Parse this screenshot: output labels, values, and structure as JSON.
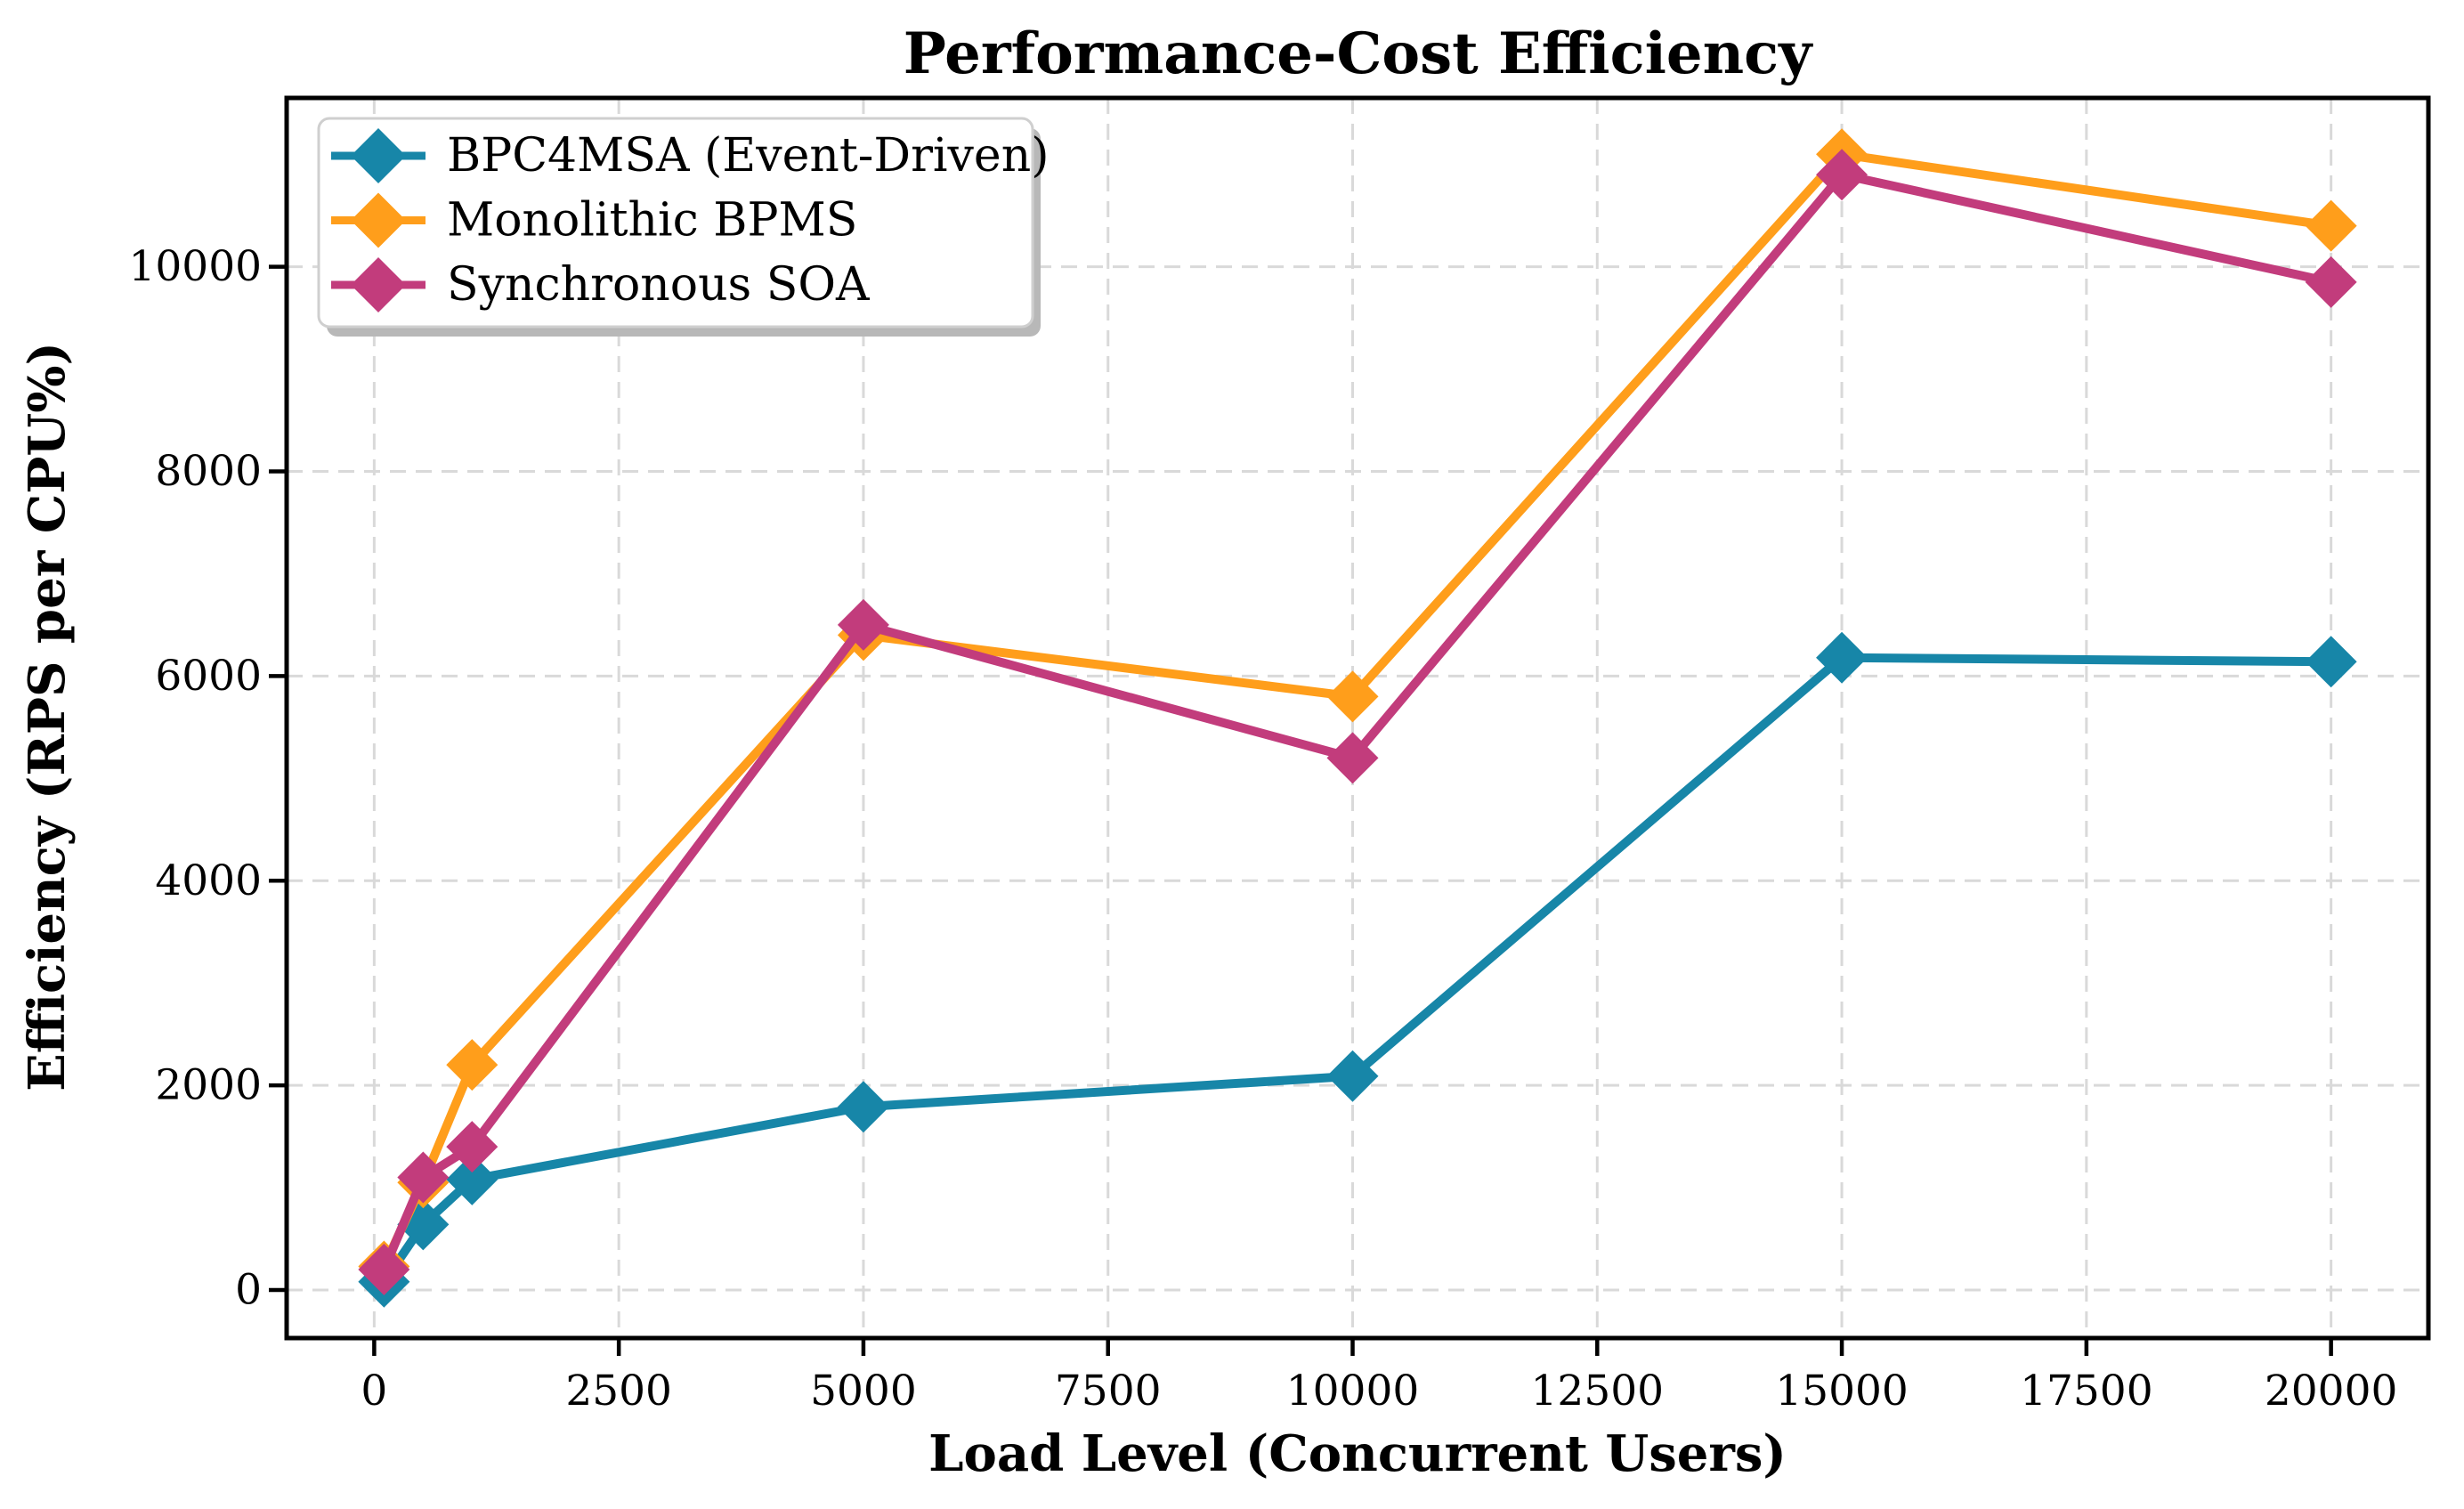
{
  "chart_data": {
    "type": "line",
    "title": "Performance-Cost Efficiency",
    "xlabel": "Load Level (Concurrent Users)",
    "ylabel": "Efficiency (RPS per CPU%)",
    "x": [
      100,
      500,
      1000,
      5000,
      10000,
      15000,
      20000
    ],
    "series": [
      {
        "name": "BPC4MSA (Event-Driven)",
        "color": "#1786A8",
        "values": [
          80,
          640,
          1080,
          1790,
          2090,
          6180,
          6140
        ]
      },
      {
        "name": "Monolithic BPMS",
        "color": "#FF9E1B",
        "values": [
          230,
          1050,
          2200,
          6400,
          5800,
          11100,
          10400
        ]
      },
      {
        "name": "Synchronous SOA",
        "color": "#C23C7C",
        "values": [
          200,
          1100,
          1400,
          6500,
          5200,
          10900,
          9850
        ]
      }
    ],
    "xticks": [
      0,
      2500,
      5000,
      7500,
      10000,
      12500,
      15000,
      17500,
      20000
    ],
    "xtick_labels": [
      "0",
      "2500",
      "5000",
      "7500",
      "10000",
      "12500",
      "15000",
      "17500",
      "20000"
    ],
    "yticks": [
      0,
      2000,
      4000,
      6000,
      8000,
      10000
    ],
    "ytick_labels": [
      "0",
      "2000",
      "4000",
      "6000",
      "8000",
      "10000"
    ],
    "xlim": [
      -895,
      20995
    ],
    "ylim": [
      -470,
      11650
    ],
    "grid": true,
    "grid_color": "#d9d9d9",
    "axis_color": "#000000",
    "background_color": "#ffffff",
    "marker": "diamond",
    "legend_position": "upper left"
  }
}
